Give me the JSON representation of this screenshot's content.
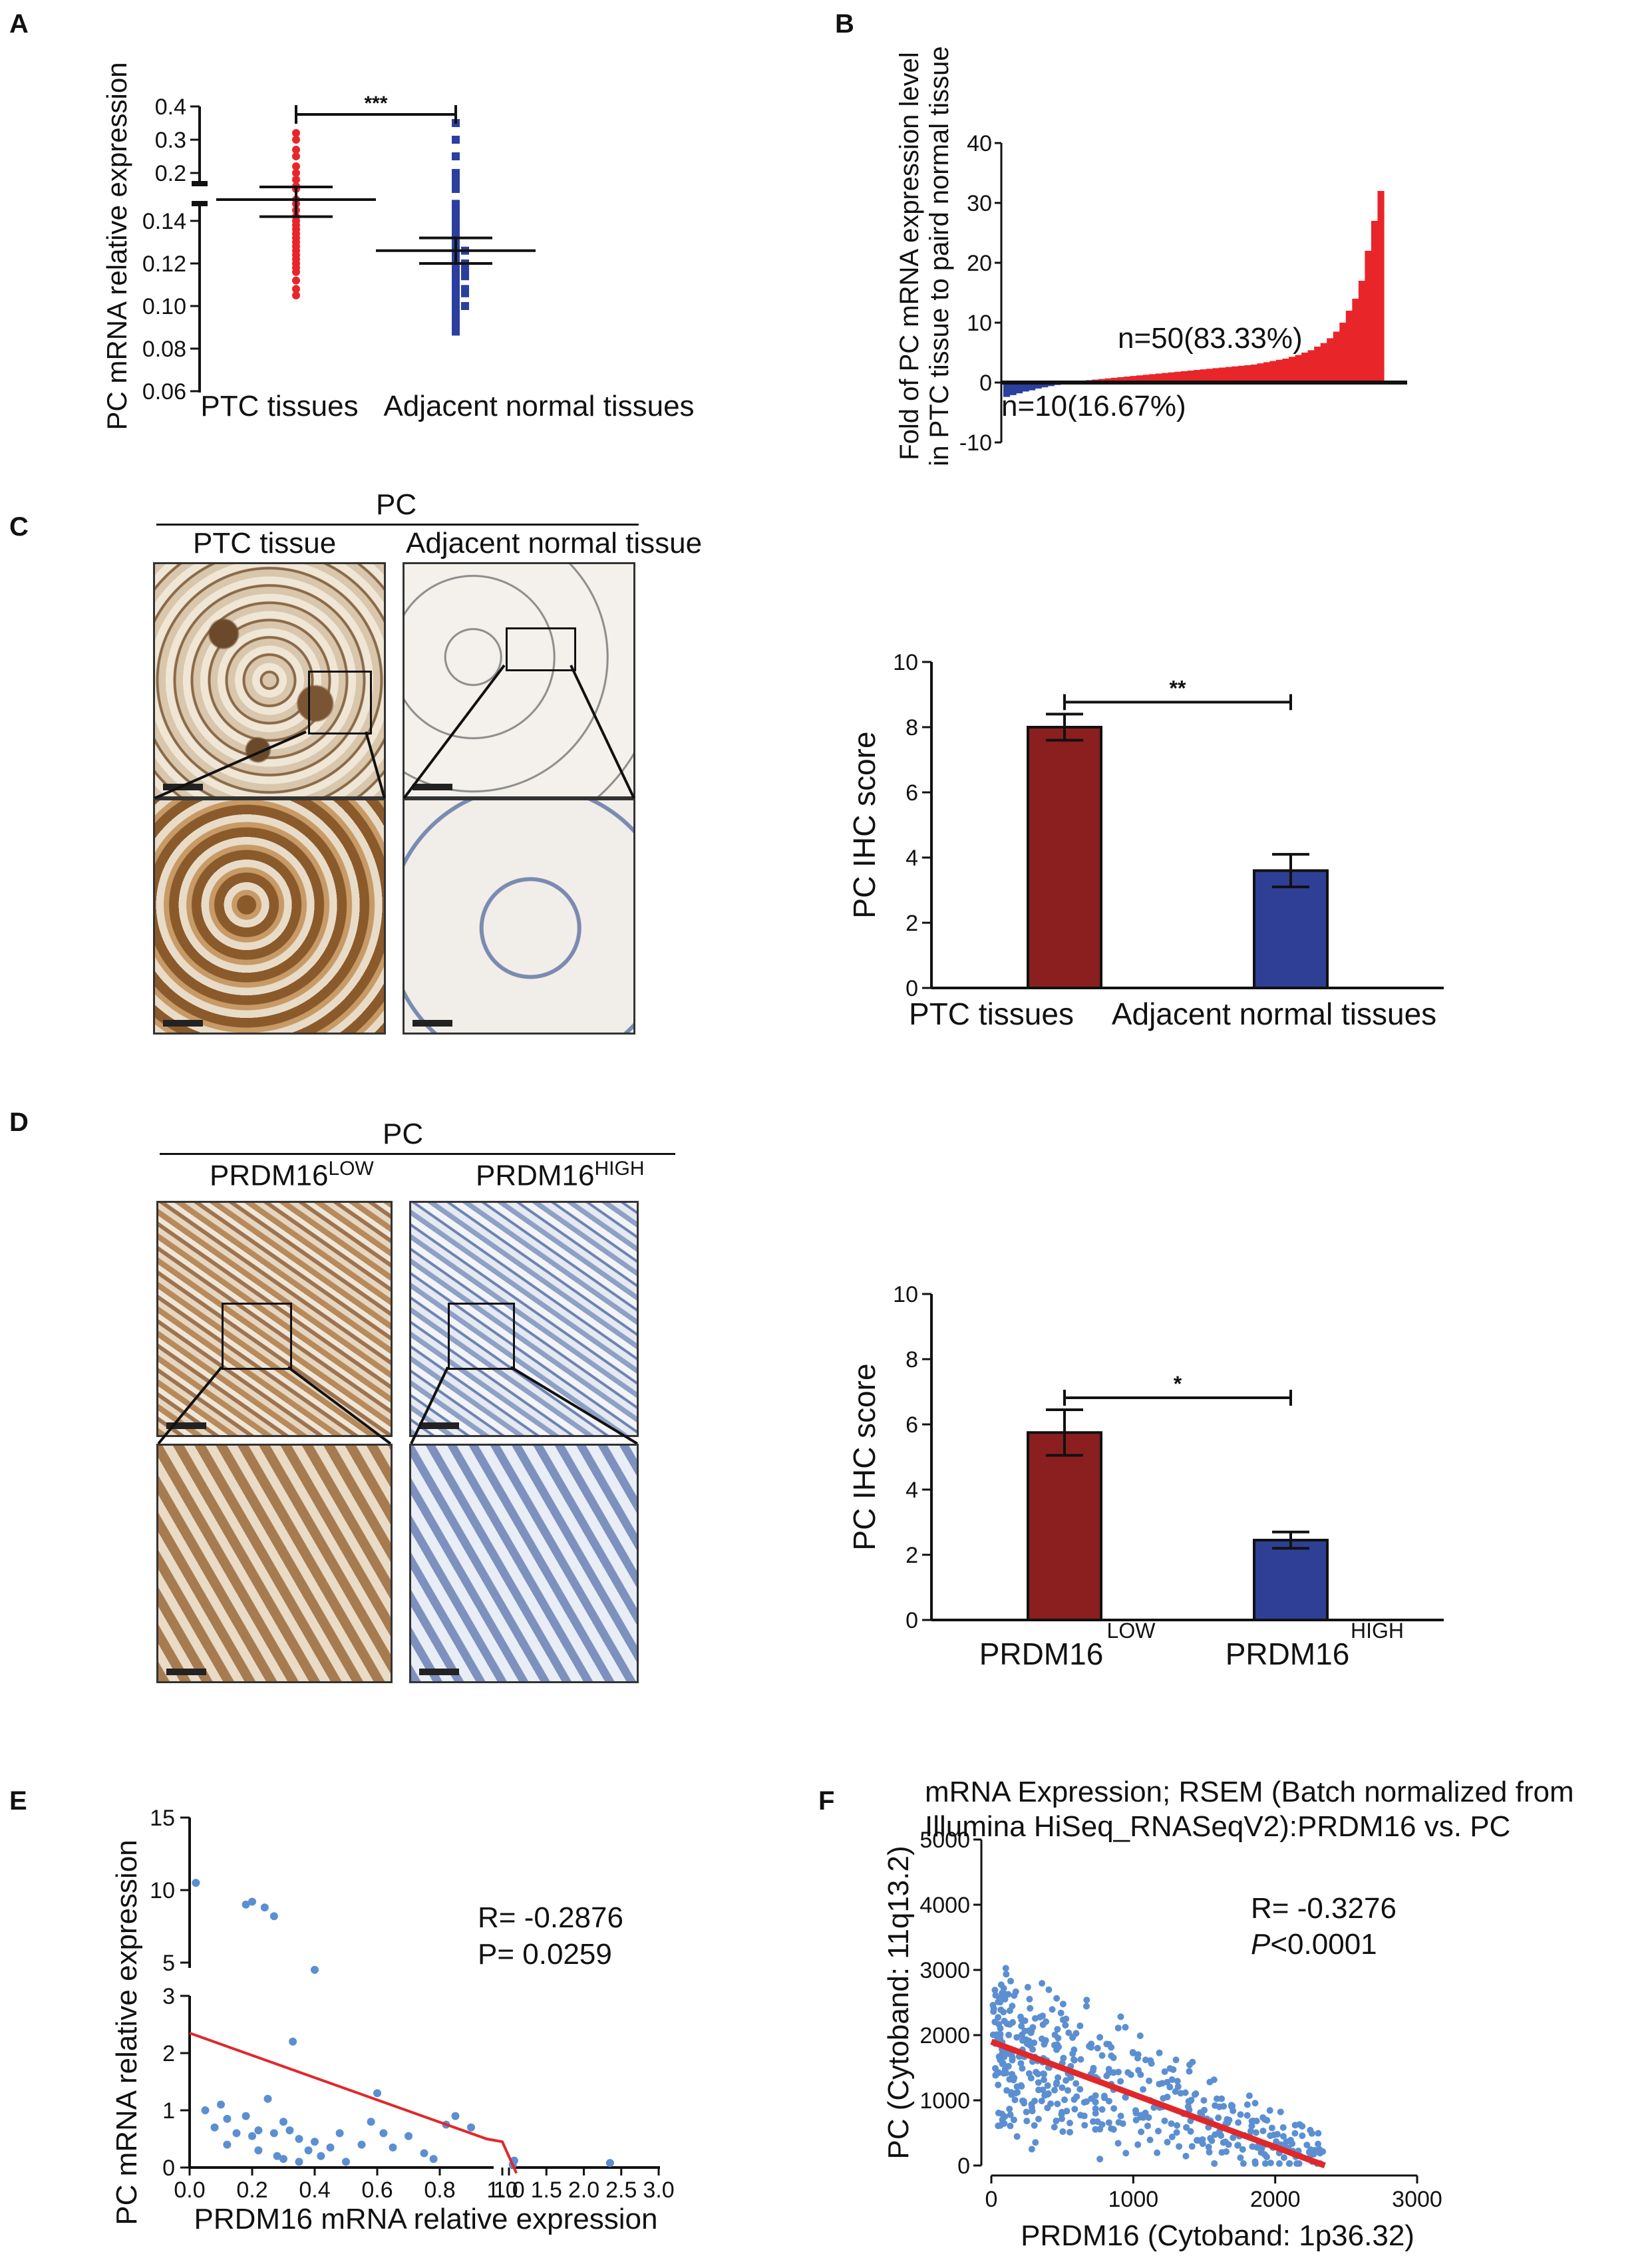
{
  "panel_labels": {
    "a": "A",
    "b": "B",
    "c": "C",
    "d": "D",
    "e": "E",
    "f": "F"
  },
  "colors": {
    "ptc": "#e8262a",
    "normal": "#2b3f9e",
    "bar_low": "#8b1f1f",
    "bar_high": "#2e3f95",
    "scatter": "#5b8fd1",
    "fit": "#e0282a"
  },
  "panel_c": {
    "header": "PC",
    "col1": "PTC tissue",
    "col2": "Adjacent normal tissue"
  },
  "panel_d": {
    "header": "PC",
    "col1_base": "PRDM16",
    "col1_sup": "LOW",
    "col2_base": "PRDM16",
    "col2_sup": "HIGH"
  },
  "chart_data": [
    {
      "id": "A",
      "type": "scatter",
      "ylabel": "PC mRNA relative expression",
      "categories": [
        "PTC tissues",
        "Adjacent normal tissues"
      ],
      "yticks": [
        "0.06",
        "0.08",
        "0.10",
        "0.12",
        "0.14",
        "0.2",
        "0.3",
        "0.4"
      ],
      "axis_break": true,
      "series": [
        {
          "name": "PTC tissues",
          "mean": 0.15,
          "sem": 0.008,
          "values": [
            0.105,
            0.108,
            0.112,
            0.116,
            0.118,
            0.12,
            0.122,
            0.124,
            0.126,
            0.128,
            0.13,
            0.132,
            0.134,
            0.136,
            0.138,
            0.14,
            0.142,
            0.145,
            0.148,
            0.15,
            0.152,
            0.155,
            0.16,
            0.18,
            0.2,
            0.22,
            0.25,
            0.27,
            0.3,
            0.32
          ]
        },
        {
          "name": "Adjacent normal tissues",
          "mean": 0.126,
          "sem": 0.006,
          "values": [
            0.088,
            0.09,
            0.092,
            0.094,
            0.096,
            0.098,
            0.1,
            0.1,
            0.102,
            0.104,
            0.105,
            0.106,
            0.108,
            0.108,
            0.11,
            0.112,
            0.113,
            0.114,
            0.115,
            0.116,
            0.118,
            0.118,
            0.12,
            0.12,
            0.122,
            0.124,
            0.125,
            0.126,
            0.128,
            0.13,
            0.132,
            0.133,
            0.135,
            0.137,
            0.14,
            0.142,
            0.145,
            0.148,
            0.152,
            0.16,
            0.18,
            0.2,
            0.25,
            0.3,
            0.35
          ]
        }
      ],
      "significance": "***"
    },
    {
      "id": "B",
      "type": "bar",
      "ylabel_line1": "Fold of PC mRNA expression level",
      "ylabel_line2": "in PTC tissue to paird normal tissue",
      "ylim": [
        -10,
        40
      ],
      "yticks": [
        "-10",
        "0",
        "10",
        "20",
        "30",
        "40"
      ],
      "annotation_up": "n=50(83.33%)",
      "annotation_down": "n=10(16.67%)",
      "neg_values": [
        -2.4,
        -2.1,
        -1.8,
        -1.5,
        -1.3,
        -1.0,
        -0.8,
        -0.6,
        -0.4,
        -0.2
      ],
      "pos_values": [
        0.1,
        0.2,
        0.3,
        0.4,
        0.5,
        0.6,
        0.7,
        0.8,
        0.9,
        1.0,
        1.1,
        1.2,
        1.3,
        1.4,
        1.5,
        1.6,
        1.7,
        1.8,
        1.9,
        2.0,
        2.1,
        2.2,
        2.3,
        2.4,
        2.5,
        2.6,
        2.7,
        2.8,
        2.9,
        3.0,
        3.2,
        3.4,
        3.6,
        3.8,
        4.0,
        4.3,
        4.6,
        5.0,
        5.4,
        6.0,
        6.6,
        7.4,
        8.5,
        10,
        12,
        14,
        17,
        22,
        27,
        32
      ]
    },
    {
      "id": "C",
      "type": "bar",
      "ylabel": "PC IHC score",
      "categories": [
        "PTC tissues",
        "Adjacent normal tissues"
      ],
      "values": [
        8.0,
        3.6
      ],
      "errors": [
        0.4,
        0.5
      ],
      "ylim": [
        0,
        10
      ],
      "yticks": [
        "0",
        "2",
        "4",
        "6",
        "8",
        "10"
      ],
      "significance": "**"
    },
    {
      "id": "D",
      "type": "bar",
      "ylabel": "PC IHC score",
      "categories_base": [
        "PRDM16",
        "PRDM16"
      ],
      "categories_sup": [
        "LOW",
        "HIGH"
      ],
      "values": [
        5.75,
        2.45
      ],
      "errors": [
        0.7,
        0.25
      ],
      "ylim": [
        0,
        10
      ],
      "yticks": [
        "0",
        "2",
        "4",
        "6",
        "8",
        "10"
      ],
      "significance": "*"
    },
    {
      "id": "E",
      "type": "scatter",
      "ylabel": "PC mRNA relative expression",
      "xlabel": "PRDM16 mRNA relative expression",
      "xticks": [
        "0.0",
        "0.2",
        "0.4",
        "0.6",
        "0.8",
        "1.0",
        "1.0",
        "1.5",
        "2.0",
        "2.5",
        "3.0"
      ],
      "yticks_low": [
        "0",
        "1",
        "2",
        "3"
      ],
      "yticks_high": [
        "5",
        "10",
        "15"
      ],
      "stat_r": "R= -0.2876",
      "stat_p": "P= 0.0259",
      "points": [
        [
          0.02,
          10.5
        ],
        [
          0.18,
          9.0
        ],
        [
          0.2,
          9.2
        ],
        [
          0.24,
          8.8
        ],
        [
          0.27,
          8.2
        ],
        [
          0.4,
          4.5
        ],
        [
          0.33,
          2.2
        ],
        [
          0.05,
          1.0
        ],
        [
          0.12,
          0.85
        ],
        [
          0.08,
          0.7
        ],
        [
          0.15,
          0.6
        ],
        [
          0.18,
          0.9
        ],
        [
          0.2,
          0.55
        ],
        [
          0.22,
          0.65
        ],
        [
          0.25,
          1.2
        ],
        [
          0.27,
          0.6
        ],
        [
          0.3,
          0.8
        ],
        [
          0.32,
          0.65
        ],
        [
          0.35,
          0.5
        ],
        [
          0.38,
          0.3
        ],
        [
          0.4,
          0.45
        ],
        [
          0.42,
          0.2
        ],
        [
          0.45,
          0.35
        ],
        [
          0.48,
          0.6
        ],
        [
          0.5,
          0.1
        ],
        [
          0.55,
          0.4
        ],
        [
          0.58,
          0.8
        ],
        [
          0.6,
          1.3
        ],
        [
          0.62,
          0.6
        ],
        [
          0.65,
          0.35
        ],
        [
          0.7,
          0.55
        ],
        [
          0.75,
          0.25
        ],
        [
          0.78,
          0.15
        ],
        [
          0.82,
          0.75
        ],
        [
          0.85,
          0.9
        ],
        [
          0.9,
          0.7
        ],
        [
          0.22,
          0.3
        ],
        [
          0.28,
          0.2
        ],
        [
          0.35,
          0.1
        ],
        [
          0.12,
          0.4
        ],
        [
          0.1,
          1.1
        ],
        [
          0.3,
          0.15
        ],
        [
          1.05,
          0.05
        ],
        [
          1.07,
          0.12
        ],
        [
          2.35,
          0.08
        ]
      ],
      "fit": [
        [
          0.0,
          2.35
        ],
        [
          0.95,
          0.5
        ],
        [
          1.0,
          0.45
        ],
        [
          1.1,
          -0.1
        ]
      ]
    },
    {
      "id": "F",
      "type": "scatter",
      "title_line1": "mRNA Expression; RSEM (Batch normalized from",
      "title_line2": "Illumina HiSeq_RNASeqV2):PRDM16 vs. PC",
      "ylabel": "PC (Cytoband: 11q13.2)",
      "xlabel": "PRDM16 (Cytoband: 1p36.32)",
      "xlim": [
        0,
        3000
      ],
      "ylim": [
        0,
        5000
      ],
      "xticks": [
        "0",
        "1000",
        "2000",
        "3000"
      ],
      "yticks": [
        "0",
        "1000",
        "2000",
        "3000",
        "4000",
        "5000"
      ],
      "stat_r": "R= -0.3276",
      "stat_p_label": "P",
      "stat_p_value": "<0.0001",
      "fit": [
        [
          0,
          1900
        ],
        [
          2350,
          0
        ]
      ]
    }
  ]
}
